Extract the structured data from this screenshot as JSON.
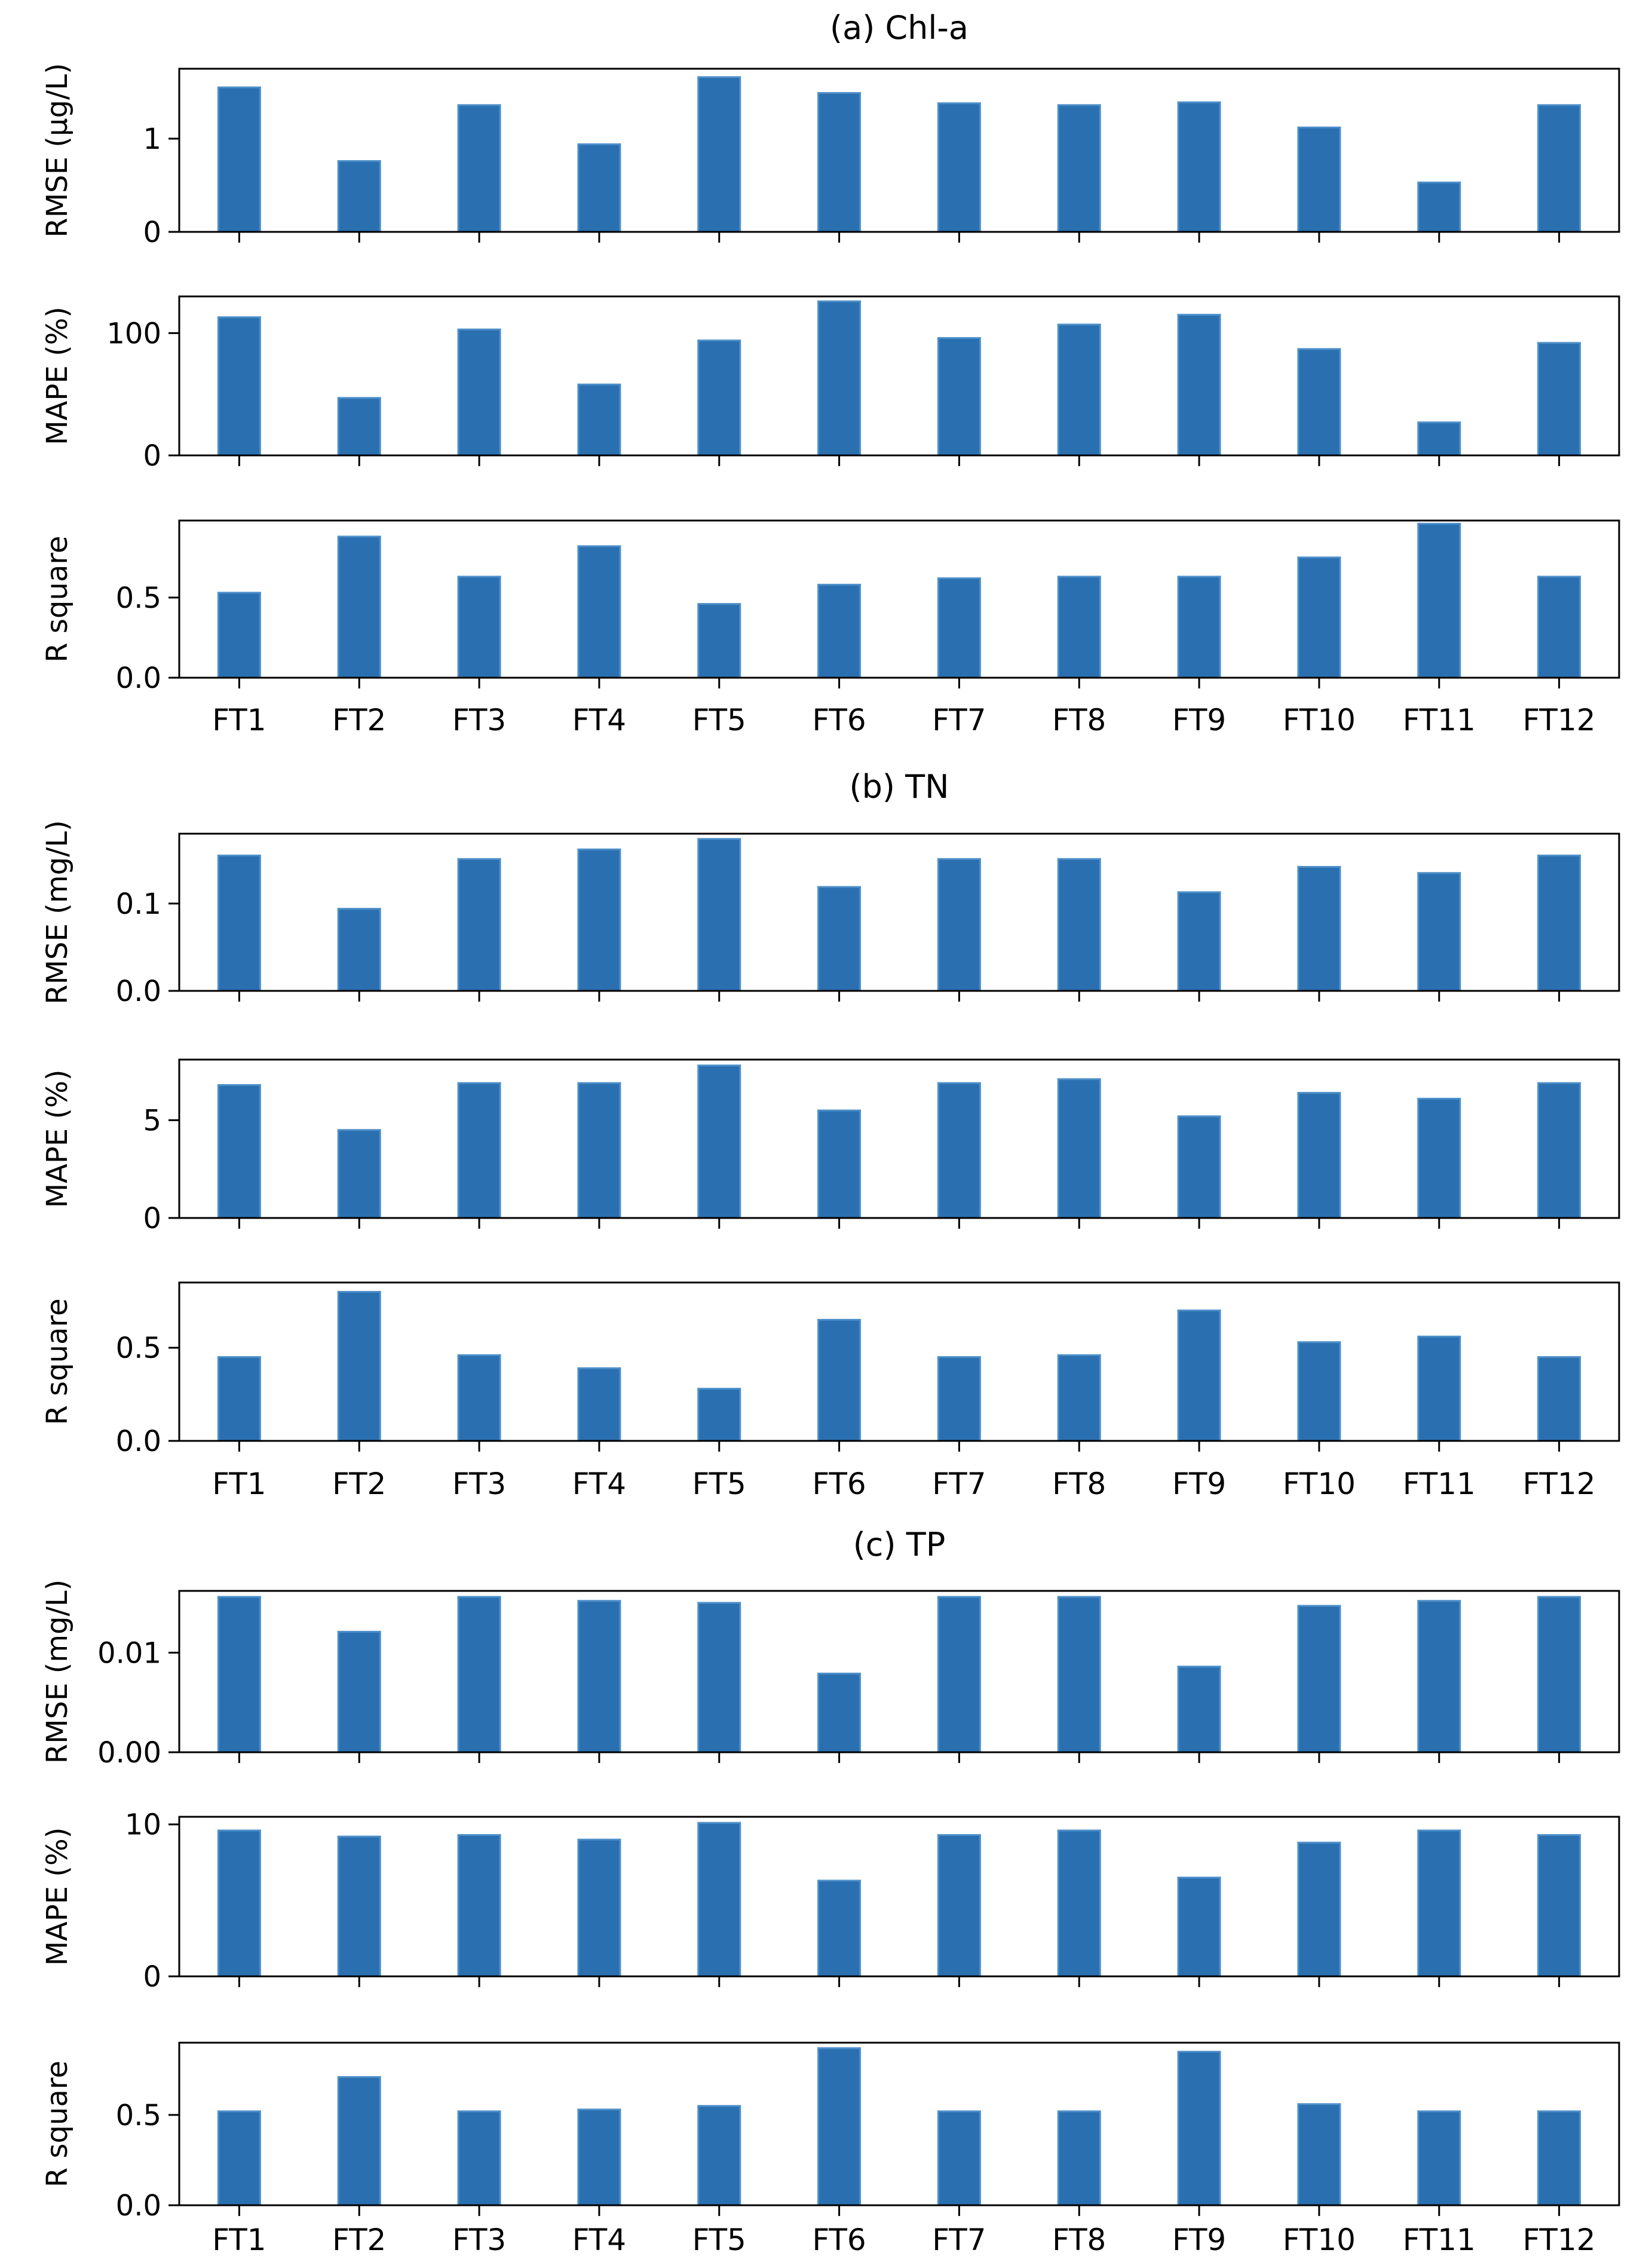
{
  "chart_data": [
    {
      "type": "bar",
      "title": "(a) Chl-a",
      "categories": [
        "FT1",
        "FT2",
        "FT3",
        "FT4",
        "FT5",
        "FT6",
        "FT7",
        "FT8",
        "FT9",
        "FT10",
        "FT11",
        "FT12"
      ],
      "subplots": [
        {
          "ylabel": "RMSE (μg/L)",
          "ylim": [
            0,
            1.75
          ],
          "yticks": [
            0,
            1
          ],
          "ytick_labels": [
            "0",
            "1"
          ],
          "values": [
            1.55,
            0.76,
            1.36,
            0.94,
            1.66,
            1.49,
            1.38,
            1.36,
            1.39,
            1.12,
            0.53,
            1.36
          ]
        },
        {
          "ylabel": "MAPE (%)",
          "ylim": [
            0,
            130
          ],
          "yticks": [
            0,
            100
          ],
          "ytick_labels": [
            "0",
            "100"
          ],
          "values": [
            113,
            47,
            103,
            58,
            94,
            126,
            96,
            107,
            115,
            87,
            27,
            92
          ]
        },
        {
          "ylabel": "R square",
          "ylim": [
            0,
            0.98
          ],
          "yticks": [
            0,
            0.5
          ],
          "ytick_labels": [
            "0.0",
            "0.5"
          ],
          "values": [
            0.53,
            0.88,
            0.63,
            0.82,
            0.46,
            0.58,
            0.62,
            0.63,
            0.63,
            0.75,
            0.96,
            0.63
          ]
        }
      ]
    },
    {
      "type": "bar",
      "title": "(b) TN",
      "categories": [
        "FT1",
        "FT2",
        "FT3",
        "FT4",
        "FT5",
        "FT6",
        "FT7",
        "FT8",
        "FT9",
        "FT10",
        "FT11",
        "FT12"
      ],
      "subplots": [
        {
          "ylabel": "RMSE (mg/L)",
          "ylim": [
            0,
            0.18
          ],
          "yticks": [
            0,
            0.1
          ],
          "ytick_labels": [
            "0.0",
            "0.1"
          ],
          "values": [
            0.155,
            0.094,
            0.151,
            0.162,
            0.174,
            0.119,
            0.151,
            0.151,
            0.113,
            0.142,
            0.135,
            0.155
          ]
        },
        {
          "ylabel": "MAPE (%)",
          "ylim": [
            0,
            8.1
          ],
          "yticks": [
            0,
            5
          ],
          "ytick_labels": [
            "0",
            "5"
          ],
          "values": [
            6.8,
            4.5,
            6.9,
            6.9,
            7.8,
            5.5,
            6.9,
            7.1,
            5.2,
            6.4,
            6.1,
            6.9
          ]
        },
        {
          "ylabel": "R square",
          "ylim": [
            0,
            0.85
          ],
          "yticks": [
            0,
            0.5
          ],
          "ytick_labels": [
            "0.0",
            "0.5"
          ],
          "values": [
            0.45,
            0.8,
            0.46,
            0.39,
            0.28,
            0.65,
            0.45,
            0.46,
            0.7,
            0.53,
            0.56,
            0.45
          ]
        }
      ]
    },
    {
      "type": "bar",
      "title": "(c) TP",
      "categories": [
        "FT1",
        "FT2",
        "FT3",
        "FT4",
        "FT5",
        "FT6",
        "FT7",
        "FT8",
        "FT9",
        "FT10",
        "FT11",
        "FT12"
      ],
      "subplots": [
        {
          "ylabel": "RMSE (mg/L)",
          "ylim": [
            0,
            0.0162
          ],
          "yticks": [
            0,
            0.01
          ],
          "ytick_labels": [
            "0.00",
            "0.01"
          ],
          "values": [
            0.0156,
            0.0121,
            0.0156,
            0.0152,
            0.015,
            0.0079,
            0.0156,
            0.0156,
            0.0086,
            0.0147,
            0.0152,
            0.0156
          ]
        },
        {
          "ylabel": "MAPE (%)",
          "ylim": [
            0,
            10.5
          ],
          "yticks": [
            0,
            10
          ],
          "ytick_labels": [
            "0",
            "10"
          ],
          "values": [
            9.6,
            9.2,
            9.3,
            9.0,
            10.1,
            6.3,
            9.3,
            9.6,
            6.5,
            8.8,
            9.6,
            9.3
          ]
        },
        {
          "ylabel": "R square",
          "ylim": [
            0,
            0.9
          ],
          "yticks": [
            0,
            0.5
          ],
          "ytick_labels": [
            "0.0",
            "0.5"
          ],
          "values": [
            0.52,
            0.71,
            0.52,
            0.53,
            0.55,
            0.87,
            0.52,
            0.52,
            0.85,
            0.56,
            0.52,
            0.52
          ]
        }
      ]
    }
  ],
  "colors": {
    "bar": "#2a70b0",
    "bar_edge": "#4d8fc9",
    "axes": "#000000",
    "text": "#000000"
  }
}
